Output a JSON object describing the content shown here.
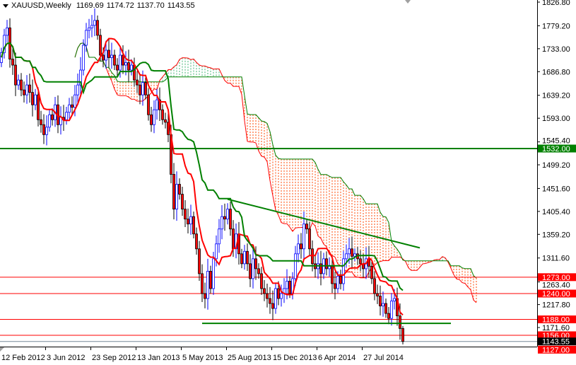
{
  "header": {
    "symbol": "XAUUSD,Weekly",
    "open": "1169.69",
    "high": "1174.72",
    "low": "1137.70",
    "close": "1143.55"
  },
  "chart_data": {
    "type": "candlestick",
    "symbol": "XAUUSD",
    "timeframe": "Weekly",
    "first_week": "12 Feb 2012",
    "ylim": [
      1127,
      1826.8
    ],
    "y_tick_labels": [
      "1826.80",
      "1779.20",
      "1733.00",
      "1686.80",
      "1639.20",
      "1593.00",
      "1545.40",
      "1499.20",
      "1451.60",
      "1405.40",
      "1359.20",
      "1311.60",
      "1263.40",
      "1217.80",
      "1171.60"
    ],
    "x_tick_labels": [
      {
        "label": "12 Feb 2012",
        "week": 0
      },
      {
        "label": "3 Jun 2012",
        "week": 16
      },
      {
        "label": "23 Sep 2012",
        "week": 32
      },
      {
        "label": "13 Jan 2013",
        "week": 48
      },
      {
        "label": "5 May 2013",
        "week": 64
      },
      {
        "label": "25 Aug 2013",
        "week": 80
      },
      {
        "label": "15 Dec 2013",
        "week": 96
      },
      {
        "label": "6 Apr 2014",
        "week": 112
      },
      {
        "label": "27 Jul 2014",
        "week": 128
      }
    ],
    "weekly_closes": [
      1725,
      1760,
      1775,
      1712,
      1700,
      1660,
      1670,
      1650,
      1640,
      1660,
      1645,
      1620,
      1640,
      1590,
      1580,
      1560,
      1575,
      1600,
      1590,
      1620,
      1580,
      1595,
      1590,
      1605,
      1620,
      1615,
      1640,
      1660,
      1690,
      1740,
      1770,
      1775,
      1780,
      1790,
      1760,
      1720,
      1710,
      1730,
      1715,
      1720,
      1700,
      1690,
      1720,
      1700,
      1705,
      1690,
      1700,
      1670,
      1660,
      1640,
      1665,
      1640,
      1600,
      1580,
      1610,
      1630,
      1610,
      1590,
      1585,
      1560,
      1480,
      1410,
      1460,
      1440,
      1410,
      1390,
      1380,
      1395,
      1360,
      1330,
      1280,
      1240,
      1230,
      1285,
      1250,
      1310,
      1340,
      1370,
      1395,
      1390,
      1410,
      1370,
      1330,
      1360,
      1320,
      1300,
      1325,
      1300,
      1270,
      1310,
      1290,
      1280,
      1250,
      1240,
      1230,
      1220,
      1210,
      1250,
      1230,
      1240,
      1250,
      1265,
      1240,
      1270,
      1320,
      1340,
      1330,
      1380,
      1370,
      1330,
      1300,
      1290,
      1300,
      1280,
      1310,
      1290,
      1295,
      1260,
      1250,
      1275,
      1260,
      1310,
      1320,
      1330,
      1315,
      1320,
      1310,
      1300,
      1290,
      1310,
      1295,
      1270,
      1240,
      1235,
      1215,
      1220,
      1200,
      1190,
      1225,
      1230,
      1195,
      1169.69,
      1143.55
    ],
    "last_candle": {
      "open": 1169.69,
      "high": 1174.72,
      "low": 1137.7,
      "close": 1143.55
    },
    "indicators": [
      "Ichimoku Kinko Hyo (9,26,52)"
    ],
    "horizontal_levels": [
      {
        "price": 1532.0,
        "label": "1532.00",
        "color": "#008000"
      },
      {
        "price": 1273.0,
        "label": "1273.00",
        "color": "#ff0000"
      },
      {
        "price": 1240.0,
        "label": "1240.00",
        "color": "#ff0000"
      },
      {
        "price": 1188.0,
        "label": "1188.00",
        "color": "#ff0000"
      },
      {
        "price": 1156.0,
        "label": "1156.00",
        "color": "#ff0000"
      },
      {
        "price": 1127.0,
        "label": "1127.00",
        "color": "#ff0000"
      }
    ],
    "current_price": {
      "price": 1143.55,
      "label": "1143.55",
      "color": "#000000"
    },
    "trendlines": [
      {
        "from": {
          "week": 80,
          "price": 1430
        },
        "to": {
          "week": 148,
          "price": 1332
        },
        "color": "#008000"
      },
      {
        "from": {
          "week": 71,
          "price": 1180
        },
        "to": {
          "week": 159,
          "price": 1180
        },
        "color": "#008000"
      }
    ],
    "colors": {
      "bull": "#0000ff",
      "bear": "#ff0000",
      "tenkan": "#ff0000",
      "kijun": "#008000",
      "cloud_up": "#3cb371",
      "cloud_down": "#ff4500"
    }
  }
}
